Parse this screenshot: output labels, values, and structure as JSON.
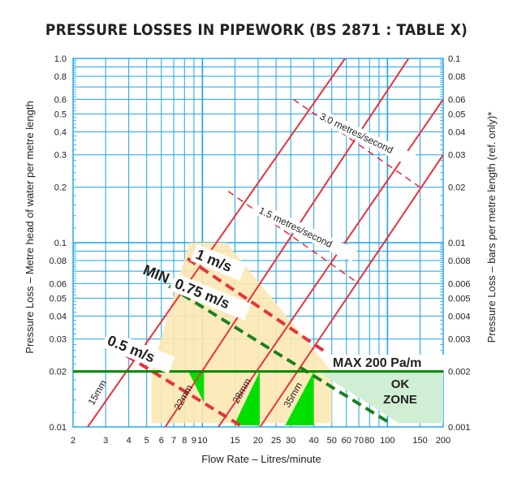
{
  "title": "PRESSURE LOSSES IN PIPEWORK (BS 2871 : TABLE X)",
  "chart_data": {
    "type": "line",
    "scale": "log-log",
    "xlabel": "Flow Rate – Litres/minute",
    "ylabel_left": "Pressure Loss – Metre head of water per metre length",
    "ylabel_right": "Pressure Loss – bars per metre length  (ref. only)*",
    "xlim": [
      2,
      200
    ],
    "ylim": [
      0.01,
      1.0
    ],
    "x_tick_labels": [
      "2",
      "3",
      "4",
      "5",
      "6",
      "7",
      "8",
      "9",
      "10",
      "15",
      "20",
      "25",
      "30",
      "40",
      "50",
      "60",
      "70",
      "80",
      "100",
      "150",
      "200"
    ],
    "y_tick_labels_left": [
      "1.0",
      "0.8",
      "0.6",
      "0.5",
      "0.4",
      "0.3",
      "0.2",
      "0.1",
      "0.08",
      "0.06",
      "0.05",
      "0.04",
      "0.03",
      "0.02",
      "0.01"
    ],
    "y_tick_labels_right": [
      "0.1",
      "0.08",
      "0.06",
      "0.05",
      "0.04",
      "0.03",
      "0.02",
      "0.01",
      "0.008",
      "0.006",
      "0.005",
      "0.004",
      "0.003",
      "0.002",
      "0.001"
    ],
    "grid": true,
    "pipes": [
      {
        "name": "15mm",
        "points": [
          [
            2.4,
            0.01
          ],
          [
            59,
            1.0
          ]
        ]
      },
      {
        "name": "22mm",
        "points": [
          [
            6.3,
            0.01
          ],
          [
            130,
            1.0
          ]
        ]
      },
      {
        "name": "28mm",
        "points": [
          [
            12.2,
            0.01
          ],
          [
            200,
            0.6
          ]
        ]
      },
      {
        "name": "35mm",
        "points": [
          [
            20.5,
            0.01
          ],
          [
            200,
            0.3
          ]
        ]
      }
    ],
    "velocity_lines": [
      {
        "name": "3.0 metres/second",
        "points": [
          [
            31,
            0.6
          ],
          [
            150,
            0.2
          ]
        ]
      },
      {
        "name": "1.5 metres/second",
        "points": [
          [
            13.8,
            0.19
          ],
          [
            70,
            0.06
          ]
        ]
      }
    ],
    "highlighted_velocities": [
      {
        "name": "1 m/s",
        "points": [
          [
            8.3,
            0.082
          ],
          [
            45,
            0.026
          ]
        ]
      },
      {
        "name": "0.5 m/s",
        "points": [
          [
            3.3,
            0.027
          ],
          [
            16,
            0.0102
          ]
        ]
      },
      {
        "name": "0.75 m/s",
        "points": [
          [
            6.6,
            0.058
          ],
          [
            100,
            0.0107
          ]
        ]
      }
    ],
    "annotations": {
      "min_label": "MIN",
      "max_line": {
        "label": "MAX 200 Pa/m",
        "y": 0.02
      },
      "ok_zone": "OK\nZONE"
    },
    "colors": {
      "grid": "#1aa3e8",
      "pipe": "#e8323a",
      "velocity_dashed": "#e8323a",
      "max_line": "#008a00",
      "green_fill": "#00e000",
      "ok_zone": "#cfeed3",
      "orange_zone": "#fde8b4",
      "min_line": "#1d7f1d"
    }
  }
}
